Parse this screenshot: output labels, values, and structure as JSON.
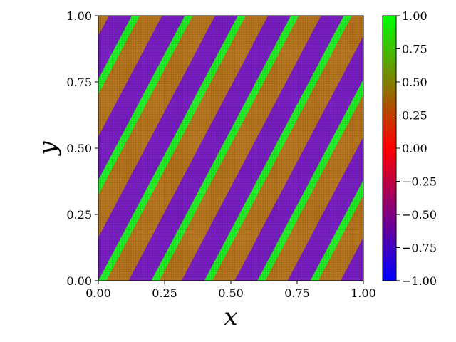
{
  "chart_data": {
    "type": "heatmap",
    "title": "",
    "xlabel": "x",
    "ylabel": "y",
    "xlim": [
      0.0,
      1.0
    ],
    "ylim": [
      0.0,
      1.0
    ],
    "grid": false,
    "x_ticks": [
      0.0,
      0.25,
      0.5,
      0.75,
      1.0
    ],
    "y_ticks": [
      0.0,
      0.25,
      0.5,
      0.75,
      1.0
    ],
    "x_tick_labels": [
      "0.00",
      "0.25",
      "0.50",
      "0.75",
      "1.00"
    ],
    "y_tick_labels": [
      "0.00",
      "0.25",
      "0.50",
      "0.75",
      "1.00"
    ],
    "colorbar": {
      "range": [
        -1.0,
        1.0
      ],
      "ticks": [
        1.0,
        0.75,
        0.5,
        0.25,
        0.0,
        -0.25,
        -0.5,
        -0.75,
        -1.0
      ],
      "tick_labels": [
        "1.00",
        "0.75",
        "0.50",
        "0.25",
        "0.00",
        "−0.25",
        "−0.50",
        "−0.75",
        "−1.00"
      ],
      "colors": [
        "#0000ff",
        "#ff0000",
        "#00ff00"
      ]
    },
    "field": {
      "description_values": "diagonal stripes, value levels observed",
      "levels": [
        -0.5,
        0.5,
        1.0
      ],
      "stripe_slope": 1.9,
      "stripe_period": 0.2,
      "band_fractions": [
        0.42,
        0.43,
        0.15
      ],
      "band_values": [
        0.5,
        -0.5,
        1.0
      ],
      "band_colors": [
        "#b8771f",
        "#7a1fc4",
        "#22f028"
      ]
    }
  }
}
